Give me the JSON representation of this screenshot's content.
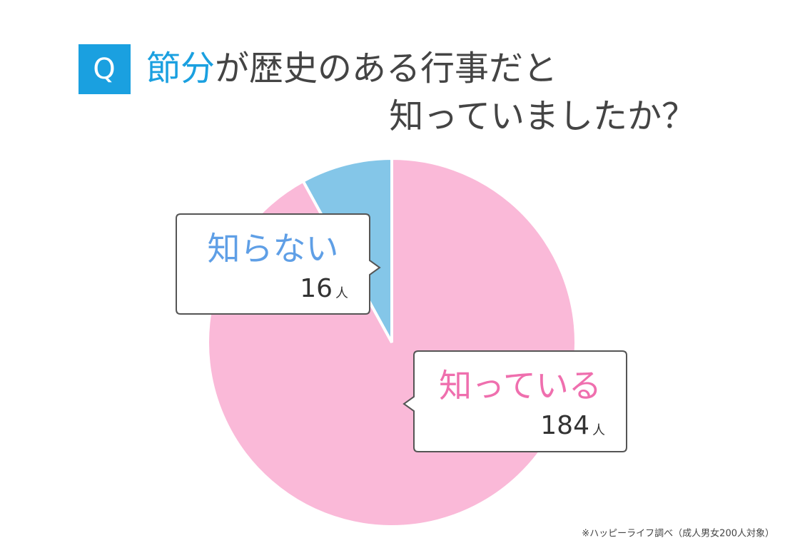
{
  "chart_data": {
    "type": "pie",
    "badge": "Q",
    "title": [
      "節分",
      "が歴史のある行事だと",
      "知っていましたか？"
    ],
    "categories": [
      "知らない",
      "知っている"
    ],
    "values": [
      16,
      184
    ],
    "unit": "人",
    "colors": [
      "#84c6e8",
      "#fab9d8"
    ],
    "label_colors": [
      "#5f9fe6",
      "#ef6fae"
    ],
    "source": "※ハッピーライフ調べ（成人男女200人対象）"
  }
}
